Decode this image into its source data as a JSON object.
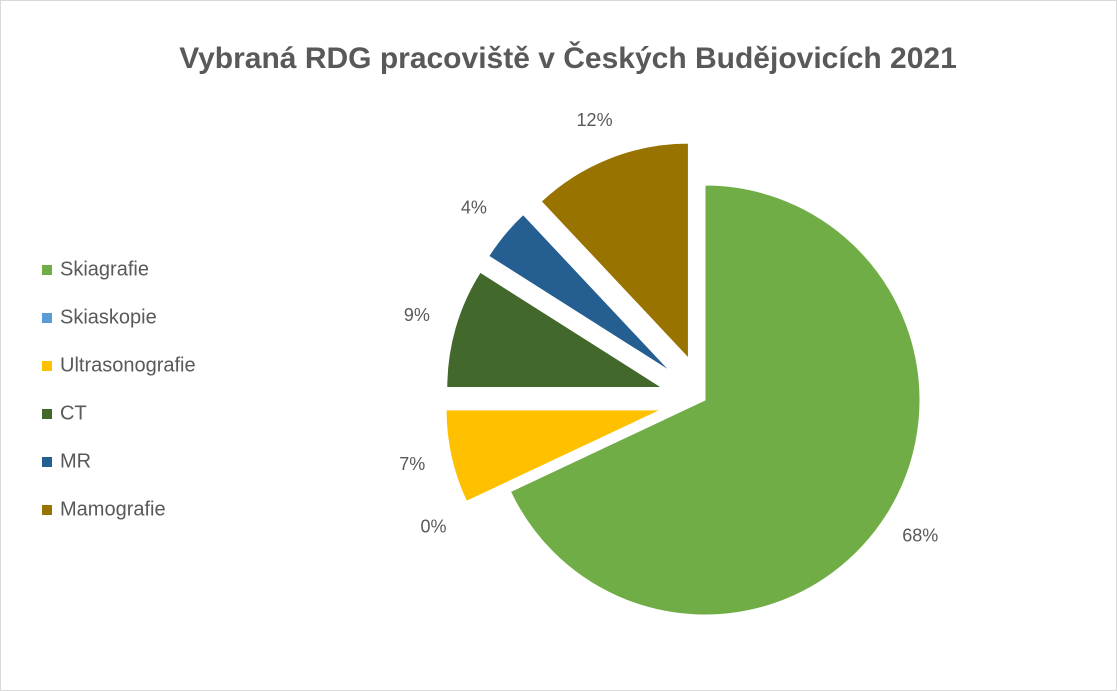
{
  "chart_data": {
    "type": "pie",
    "title": "Vybraná RDG pracoviště v Českých Budějovicích 2021",
    "categories": [
      "Skiagrafie",
      "Skiaskopie",
      "Ultrasonografie",
      "CT",
      "MR",
      "Mamografie"
    ],
    "values": [
      68,
      0,
      7,
      9,
      4,
      12
    ],
    "value_labels": [
      "68%",
      "0%",
      "7%",
      "9%",
      "4%",
      "12%"
    ],
    "colors": [
      "#70ad47",
      "#5b9bd5",
      "#ffc000",
      "#43682b",
      "#255e91",
      "#997300"
    ],
    "legend": "left"
  }
}
